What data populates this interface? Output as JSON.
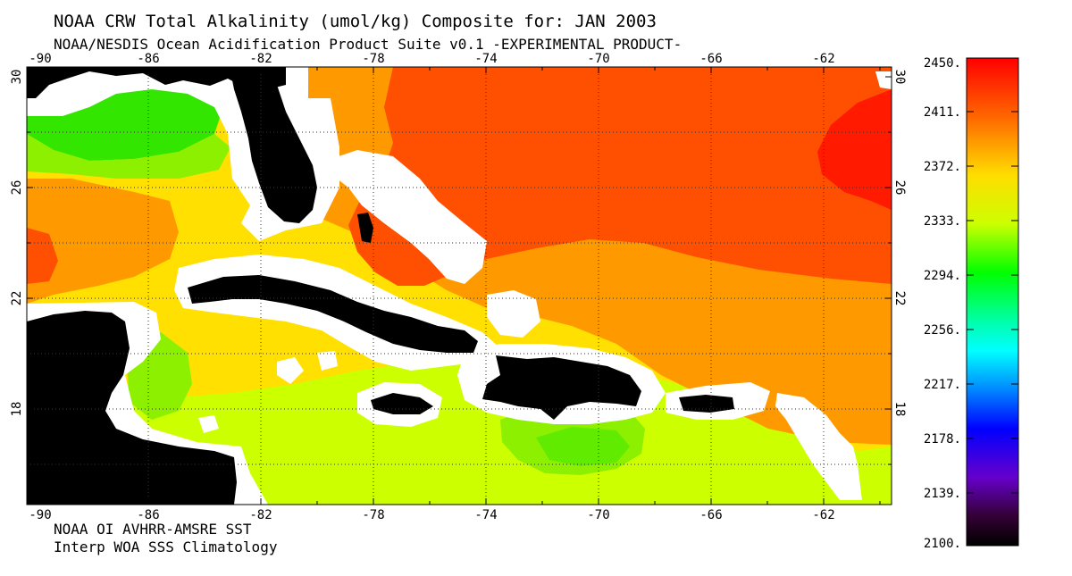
{
  "header": {
    "title": "NOAA CRW Total Alkalinity (umol/kg) Composite for: JAN 2003",
    "subtitle": "NOAA/NESDIS Ocean Acidification Product Suite  v0.1 -EXPERIMENTAL PRODUCT-"
  },
  "footer": {
    "line1": "NOAA OI AVHRR-AMSRE SST",
    "line2": "Interp WOA SSS Climatology"
  },
  "map": {
    "lon_labels": [
      "-90",
      "-86",
      "-82",
      "-78",
      "-74",
      "-70",
      "-66",
      "-62"
    ],
    "lat_labels": [
      "30",
      "26",
      "22",
      "18"
    ],
    "land_color": "#000000",
    "coast_mask_color": "#ffffff",
    "grid": "dotted"
  },
  "colorbar": {
    "labels": [
      "2450.",
      "2411.",
      "2372.",
      "2333.",
      "2294.",
      "2256.",
      "2217.",
      "2178.",
      "2139.",
      "2100."
    ],
    "min": 2100,
    "max": 2450,
    "colors": [
      "#ff0000",
      "#ff5500",
      "#ffaa00",
      "#ffff00",
      "#aaff00",
      "#00ff00",
      "#00ff88",
      "#00ffff",
      "#0088ff",
      "#0000ff",
      "#5500cc",
      "#330044",
      "#000000"
    ]
  },
  "fill_colors": {
    "red": "#ff1a00",
    "orange_red": "#ff4f00",
    "orange": "#ff9900",
    "yellow": "#ffe000",
    "yellow_green": "#ccff00",
    "light_green": "#8cf000",
    "green": "#33e600"
  }
}
